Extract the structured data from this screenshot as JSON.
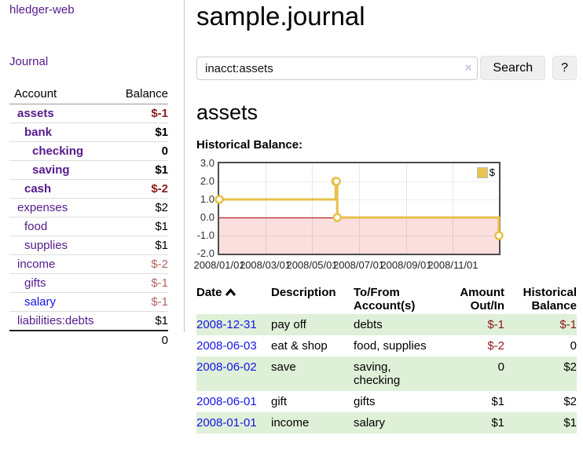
{
  "app": {
    "title": "hledger-web"
  },
  "colors": {
    "link_purple": "#551a8b",
    "link_blue": "#1515e5",
    "negative_strong": "#8b1a1a",
    "negative_light": "#b2635f",
    "row_green": "#dff0d8",
    "chart_line": "#e8c04a"
  },
  "sidebar": {
    "journal_link": "Journal",
    "accounts": {
      "headers": [
        "Account",
        "Balance"
      ],
      "rows": [
        {
          "name": "assets",
          "balance": "$-1",
          "indent": 1,
          "bold": true,
          "neg": "strong"
        },
        {
          "name": "bank",
          "balance": "$1",
          "indent": 2,
          "bold": true
        },
        {
          "name": "checking",
          "balance": "0",
          "indent": 3,
          "bold": true
        },
        {
          "name": "saving",
          "balance": "$1",
          "indent": 3,
          "bold": true
        },
        {
          "name": "cash",
          "balance": "$-2",
          "indent": 2,
          "bold": true,
          "neg": "strong"
        },
        {
          "name": "expenses",
          "balance": "$2",
          "indent": 1
        },
        {
          "name": "food",
          "balance": "$1",
          "indent": 2
        },
        {
          "name": "supplies",
          "balance": "$1",
          "indent": 2
        },
        {
          "name": "income",
          "balance": "$-2",
          "indent": 1,
          "neg": "light"
        },
        {
          "name": "gifts",
          "balance": "$-1",
          "indent": 2,
          "neg": "light"
        },
        {
          "name": "salary",
          "balance": "$-1",
          "indent": 2,
          "neg": "light",
          "link_color": "blue"
        },
        {
          "name": "liabilities:debts",
          "balance": "$1",
          "indent": 1
        }
      ],
      "total": "0"
    }
  },
  "main": {
    "title": "sample.journal",
    "search": {
      "value": "inacct:assets",
      "clear_icon": "×",
      "button_label": "Search",
      "help_label": "?"
    },
    "account_heading": "assets",
    "chart_label": "Historical Balance:"
  },
  "chart_data": {
    "type": "line",
    "step": true,
    "title": "Historical Balance",
    "x_range": [
      "2008-01-01",
      "2008-12-31"
    ],
    "ylim": [
      -2,
      3
    ],
    "yticks": [
      "3.0",
      "2.0",
      "1.0",
      "0.0",
      "-1.0",
      "-2.0"
    ],
    "xtick_labels": [
      "2008/01/01",
      "2008/03/01",
      "2008/05/01",
      "2008/07/01",
      "2008/09/01",
      "2008/11/01"
    ],
    "series": [
      {
        "name": "$",
        "color": "#e8c04a",
        "points": [
          [
            "2008-01-01",
            1
          ],
          [
            "2008-06-01",
            2
          ],
          [
            "2008-06-02",
            2
          ],
          [
            "2008-06-03",
            0
          ],
          [
            "2008-12-31",
            -1
          ]
        ]
      }
    ],
    "legend": {
      "label": "$",
      "position": "top-right"
    },
    "negative_region_color": "#fbdede",
    "zero_line_color": "#a40000",
    "grid": true
  },
  "register": {
    "headers": [
      "Date",
      "Description",
      "To/From\nAccount(s)",
      "Amount\nOut/In",
      "Historical\nBalance"
    ],
    "sort_icon": "chevron-up",
    "rows": [
      {
        "date": "2008-12-31",
        "description": "pay off",
        "accounts": "debts",
        "amount": "$-1",
        "balance": "$-1"
      },
      {
        "date": "2008-06-03",
        "description": "eat & shop",
        "accounts": "food, supplies",
        "amount": "$-2",
        "balance": "0"
      },
      {
        "date": "2008-06-02",
        "description": "save",
        "accounts": "saving,\nchecking",
        "amount": "0",
        "balance": "$2"
      },
      {
        "date": "2008-06-01",
        "description": "gift",
        "accounts": "gifts",
        "amount": "$1",
        "balance": "$2"
      },
      {
        "date": "2008-01-01",
        "description": "income",
        "accounts": "salary",
        "amount": "$1",
        "balance": "$1"
      }
    ]
  }
}
